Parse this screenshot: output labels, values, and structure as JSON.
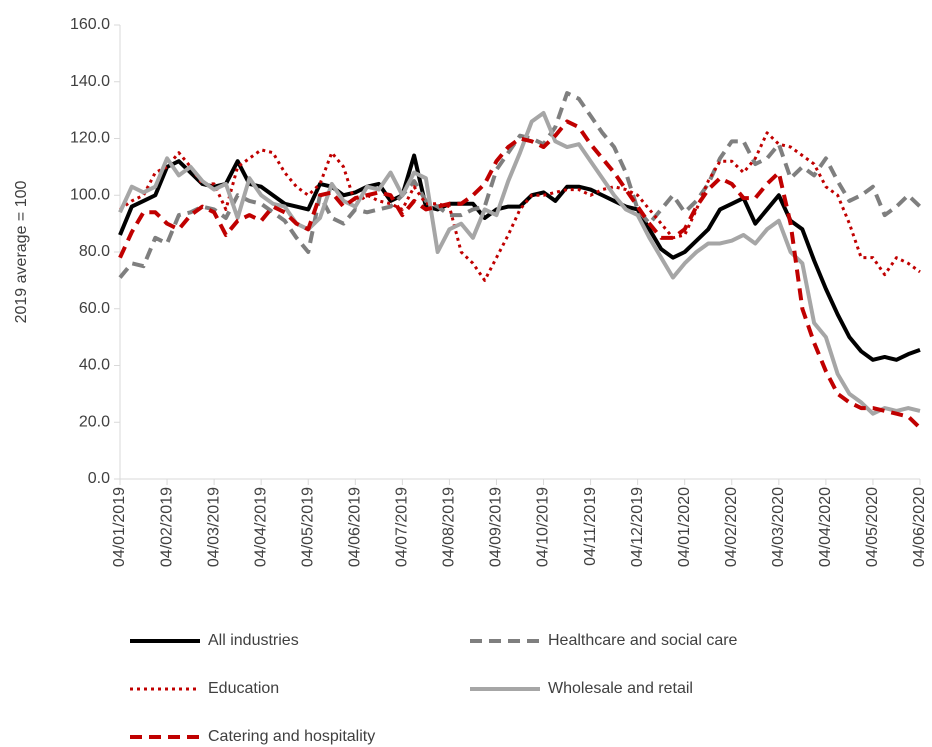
{
  "chart_data": {
    "type": "line",
    "y_label": "2019 average = 100",
    "categories": [
      "04/01/2019",
      null,
      null,
      null,
      "04/02/2019",
      null,
      null,
      null,
      "04/03/2019",
      null,
      null,
      null,
      "04/04/2019",
      null,
      null,
      null,
      "04/05/2019",
      null,
      null,
      null,
      "04/06/2019",
      null,
      null,
      null,
      "04/07/2019",
      null,
      null,
      null,
      "04/08/2019",
      null,
      null,
      null,
      "04/09/2019",
      null,
      null,
      null,
      "04/10/2019",
      null,
      null,
      null,
      "04/11/2019",
      null,
      null,
      null,
      "04/12/2019",
      null,
      null,
      null,
      "04/01/2020",
      null,
      null,
      null,
      "04/02/2020",
      null,
      null,
      null,
      "04/03/2020",
      null,
      null,
      null,
      "04/04/2020",
      null,
      null,
      null,
      "04/05/2020",
      null,
      null,
      null,
      "04/06/2020"
    ],
    "ylim": [
      0,
      160
    ],
    "yticks": [
      {
        "value": 0,
        "label": "0.0"
      },
      {
        "value": 20,
        "label": "20.0"
      },
      {
        "value": 40,
        "label": "40.0"
      },
      {
        "value": 60,
        "label": "60.0"
      },
      {
        "value": 80,
        "label": "80.0"
      },
      {
        "value": 100,
        "label": "100.0"
      },
      {
        "value": 120,
        "label": "120.0"
      },
      {
        "value": 140,
        "label": "140.0"
      },
      {
        "value": 160,
        "label": "160.0"
      }
    ],
    "grid": false,
    "series": [
      {
        "name": "All industries",
        "color": "#000000",
        "dash": "solid",
        "values": [
          86,
          96,
          98,
          100,
          110,
          112,
          108,
          104,
          103,
          104,
          112,
          104,
          103,
          100,
          97,
          96,
          95,
          104,
          103,
          100,
          101,
          103,
          104,
          98,
          100,
          114,
          96,
          95,
          97,
          97,
          97,
          92,
          95,
          96,
          96,
          100,
          101,
          98,
          103,
          103,
          102,
          100,
          98,
          96,
          95,
          88,
          81,
          78,
          80,
          84,
          88,
          95,
          97,
          99,
          90,
          95,
          100,
          91,
          88,
          77,
          67,
          58,
          50,
          45,
          42,
          43,
          42,
          44,
          45.5
        ]
      },
      {
        "name": "Healthcare and social care",
        "color": "#7f7f7f",
        "dash": "dashed",
        "values": [
          71,
          76,
          75,
          85,
          83,
          93,
          94,
          96,
          95,
          92,
          100,
          98,
          97,
          94,
          91,
          85,
          80,
          100,
          92,
          90,
          95,
          94,
          95,
          96,
          100,
          105,
          98,
          96,
          93,
          93,
          95,
          96,
          109,
          115,
          121,
          120,
          118,
          124,
          136,
          134,
          128,
          122,
          117,
          108,
          95,
          90,
          95,
          100,
          94,
          98,
          104,
          113,
          119,
          119,
          111,
          113,
          118,
          106,
          110,
          107,
          113,
          105,
          98,
          100,
          103,
          93,
          96,
          100,
          96
        ]
      },
      {
        "name": "Education",
        "color": "#c00000",
        "dash": "dotted",
        "values": [
          95,
          98,
          100,
          108,
          110,
          115,
          110,
          104,
          104,
          95,
          110,
          113,
          116,
          115,
          108,
          103,
          100,
          104,
          115,
          110,
          97,
          100,
          98,
          97,
          95,
          103,
          97,
          97,
          96,
          80,
          76,
          70,
          78,
          86,
          95,
          100,
          100,
          101,
          102,
          102,
          100,
          102,
          103,
          102,
          100,
          95,
          90,
          85,
          86,
          95,
          105,
          112,
          112,
          108,
          113,
          122,
          118,
          117,
          114,
          111,
          103,
          100,
          90,
          78,
          78,
          72,
          78,
          76,
          73
        ]
      },
      {
        "name": "Wholesale and retail",
        "color": "#a6a6a6",
        "dash": "solid",
        "values": [
          94,
          103,
          101,
          103,
          113,
          107,
          110,
          105,
          102,
          104,
          92,
          106,
          100,
          97,
          96,
          90,
          88,
          92,
          104,
          98,
          96,
          103,
          102,
          108,
          100,
          108,
          106,
          80,
          88,
          90,
          85,
          95,
          93,
          105,
          115,
          126,
          129,
          119,
          117,
          118,
          112,
          106,
          100,
          95,
          93,
          85,
          78,
          71,
          76,
          80,
          83,
          83,
          84,
          86,
          83,
          88,
          91,
          80,
          76,
          55,
          50,
          37,
          30,
          27,
          23,
          25,
          24,
          25,
          24
        ]
      },
      {
        "name": "Catering and hospitality",
        "color": "#c00000",
        "dash": "dashed",
        "values": [
          78,
          87,
          94,
          94,
          90,
          88,
          93,
          96,
          94,
          86,
          91,
          93,
          91,
          96,
          94,
          90,
          88,
          100,
          101,
          96,
          99,
          100,
          101,
          100,
          93,
          98,
          95,
          96,
          97,
          97,
          100,
          104,
          112,
          117,
          120,
          119,
          117,
          121,
          126,
          124,
          118,
          113,
          108,
          102,
          96,
          90,
          85,
          85,
          88,
          96,
          102,
          106,
          104,
          99,
          99,
          104,
          108,
          90,
          60,
          48,
          38,
          30,
          27,
          25,
          25,
          24,
          23,
          22,
          18
        ]
      }
    ]
  }
}
